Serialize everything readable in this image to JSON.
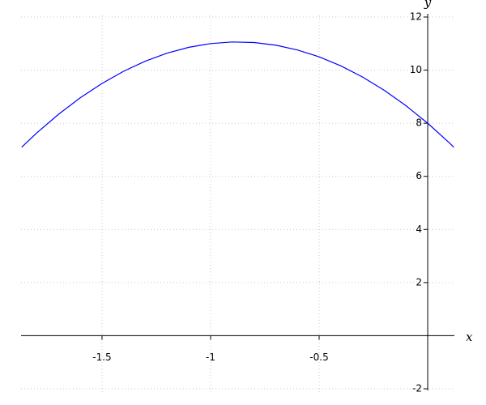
{
  "chart_data": {
    "type": "line",
    "x_label": "x",
    "y_label": "y",
    "x": [
      -1.87,
      -1.8,
      -1.7,
      -1.6,
      -1.5,
      -1.4,
      -1.3,
      -1.2,
      -1.1,
      -1.0,
      -0.9,
      -0.8,
      -0.7,
      -0.6,
      -0.5,
      -0.4,
      -0.3,
      -0.2,
      -0.1,
      0,
      0.1,
      0.12
    ],
    "series": [
      {
        "color": "#0000ff",
        "values": [
          7.1,
          7.64,
          8.34,
          8.96,
          9.5,
          9.96,
          10.34,
          10.64,
          10.86,
          11.0,
          11.06,
          11.04,
          10.94,
          10.76,
          10.5,
          10.16,
          9.74,
          9.24,
          8.66,
          8.0,
          7.26,
          7.1
        ]
      }
    ],
    "xlim": [
      -1.873,
      0.123
    ],
    "ylim": [
      -2,
      12
    ],
    "xticks": [
      -1.5,
      -1,
      -0.5
    ],
    "yticks": [
      -2,
      2,
      4,
      6,
      8,
      10,
      12
    ],
    "grid": true
  }
}
